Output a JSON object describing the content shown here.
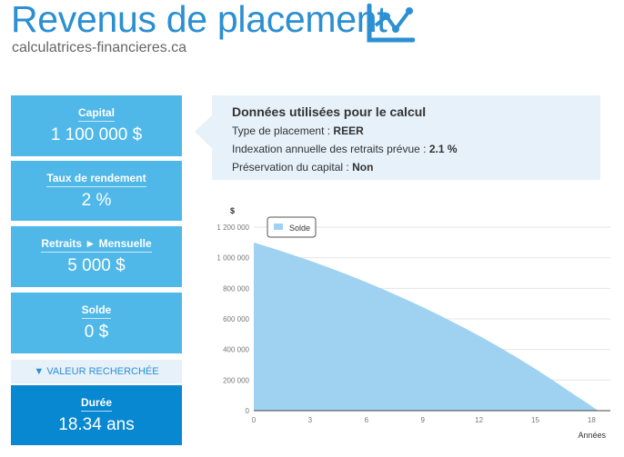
{
  "header": {
    "title": "Revenus de placement",
    "subtitle": "calculatrices-financieres.ca",
    "logo_icon": "line-chart-icon"
  },
  "panels": [
    {
      "label": "Capital",
      "value": "1 100 000 $"
    },
    {
      "label": "Taux de rendement",
      "value": "2 %"
    },
    {
      "label": "Retraits ► Mensuelle",
      "value": "5 000 $"
    },
    {
      "label": "Solde",
      "value": "0 $"
    }
  ],
  "sought": {
    "label": "▼ VALEUR RECHERCHÉE",
    "result_label": "Durée",
    "result_value": "18.34 ans"
  },
  "info": {
    "heading": "Données utilisées pour le calcul",
    "rows": [
      {
        "label": "Type de placement : ",
        "value": "REER"
      },
      {
        "label": "Indexation annuelle des retraits prévue : ",
        "value": "2.1 %"
      },
      {
        "label": "Préservation du capital : ",
        "value": "Non"
      }
    ]
  },
  "colors": {
    "accent": "#2b8fd3",
    "panel": "#50b8e8",
    "result": "#0888d0",
    "area": "#9fd2f0"
  },
  "chart_data": {
    "type": "area",
    "ylabel": "$",
    "xlabel": "Années",
    "xlim": [
      0,
      19
    ],
    "ylim": [
      0,
      1200000
    ],
    "xticks": [
      0,
      3,
      6,
      9,
      12,
      15,
      18
    ],
    "yticks": [
      0,
      200000,
      400000,
      600000,
      800000,
      1000000,
      1200000
    ],
    "ytick_labels": [
      "0",
      "200 000",
      "400 000",
      "600 000",
      "800 000",
      "1 000 000",
      "1 200 000"
    ],
    "grid": true,
    "legend": "top-left",
    "series": [
      {
        "name": "Solde",
        "x": [
          0,
          1,
          2,
          3,
          4,
          5,
          6,
          7,
          8,
          9,
          10,
          11,
          12,
          13,
          14,
          15,
          16,
          17,
          18,
          18.34,
          19
        ],
        "values": [
          1100000,
          1062000,
          1022000,
          980000,
          936000,
          889000,
          840000,
          788000,
          734000,
          677000,
          617000,
          555000,
          490000,
          421000,
          349000,
          273000,
          194000,
          111000,
          30000,
          0,
          0
        ]
      }
    ]
  }
}
